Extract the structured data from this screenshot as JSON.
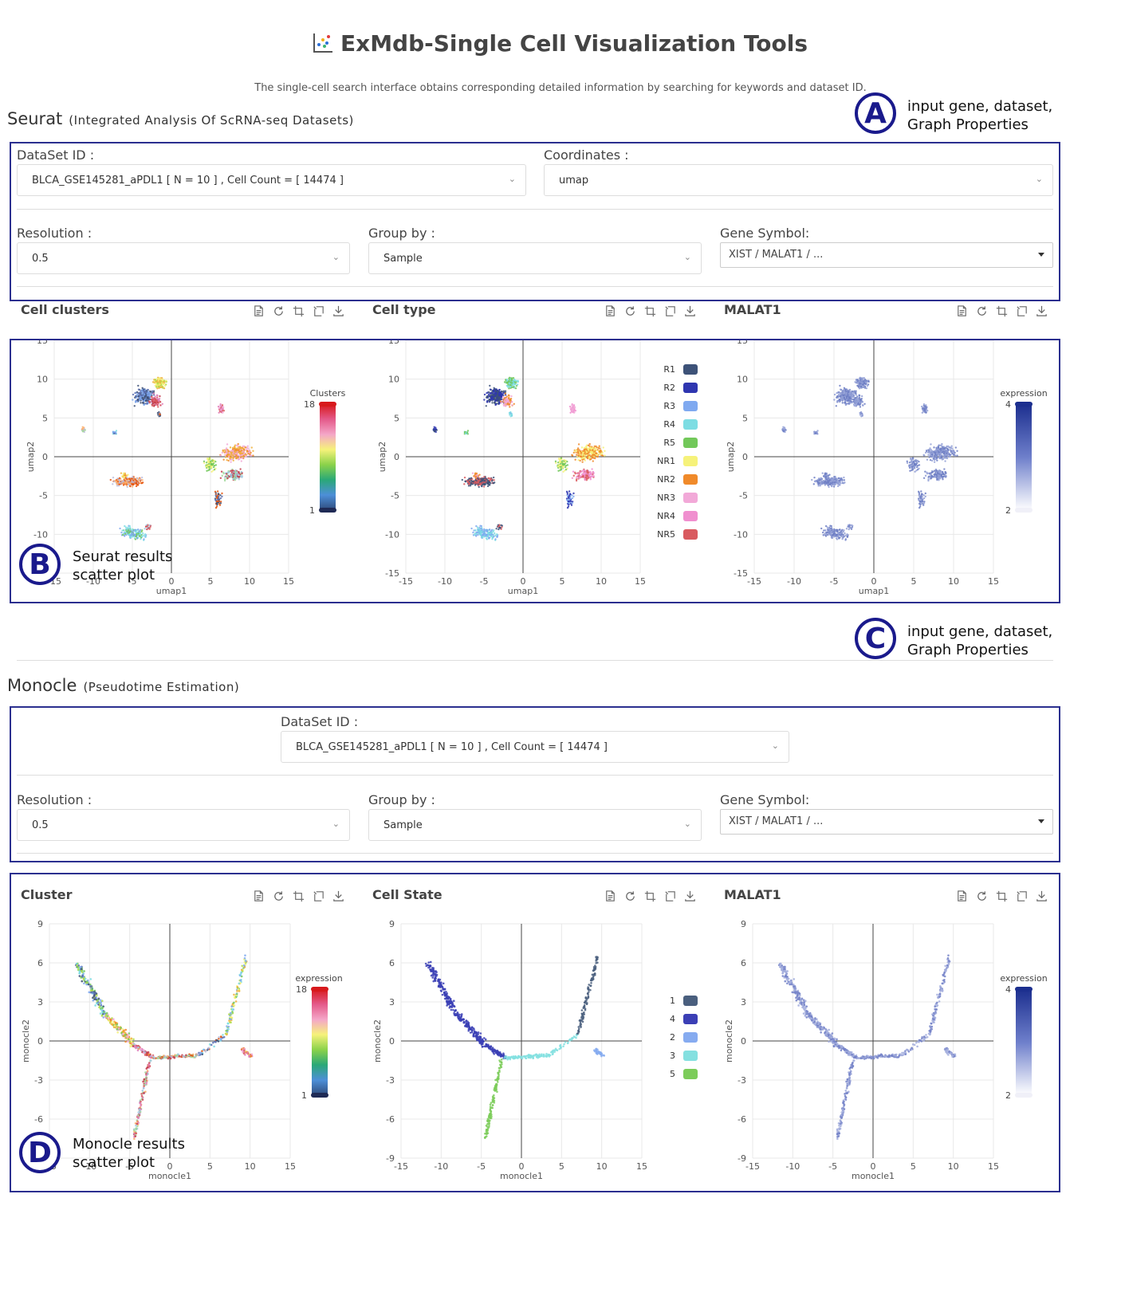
{
  "header": {
    "title": "ExMdb-Single Cell Visualization Tools",
    "subtitle": "The single-cell search interface obtains corresponding detailed information by searching for keywords and dataset ID."
  },
  "annotations": {
    "a": {
      "letter": "A",
      "line1": "input gene, dataset,",
      "line2": "Graph Properties"
    },
    "b": {
      "letter": "B",
      "line1": "Seurat results",
      "line2": "scatter plot"
    },
    "c": {
      "letter": "C",
      "line1": "input gene, dataset,",
      "line2": "Graph Properties"
    },
    "d": {
      "letter": "D",
      "line1": "Monocle results",
      "line2": "scatter plot"
    }
  },
  "seurat": {
    "name": "Seurat",
    "desc": "(Integrated Analysis Of ScRNA-seq Datasets)",
    "dataset_label": "DataSet ID :",
    "dataset_value": "BLCA_GSE145281_aPDL1 [ N = 10 ] , Cell Count = [ 14474 ]",
    "coord_label": "Coordinates :",
    "coord_value": "umap",
    "resolution_label": "Resolution :",
    "resolution_value": "0.5",
    "groupby_label": "Group by :",
    "groupby_value": "Sample",
    "gene_label": "Gene Symbol:",
    "gene_value": "XIST / MALAT1 / ...",
    "plot_titles": [
      "Cell clusters",
      "Cell type",
      "MALAT1"
    ]
  },
  "monocle": {
    "name": "Monocle",
    "desc": "(Pseudotime Estimation)",
    "dataset_label": "DataSet ID :",
    "dataset_value": "BLCA_GSE145281_aPDL1 [ N = 10 ] , Cell Count = [ 14474 ]",
    "resolution_label": "Resolution :",
    "resolution_value": "0.5",
    "groupby_label": "Group by :",
    "groupby_value": "Sample",
    "gene_label": "Gene Symbol:",
    "gene_value": "XIST / MALAT1 / ...",
    "plot_titles": [
      "Cluster",
      "Cell State",
      "MALAT1"
    ]
  },
  "icons": [
    "data-view-icon",
    "restore-icon",
    "zoom-icon",
    "zoom-reset-icon",
    "download-icon"
  ],
  "chart_data": [
    {
      "type": "scatter",
      "title": "Cell clusters",
      "xlabel": "umap1",
      "ylabel": "umap2",
      "xlim": [
        -15,
        15
      ],
      "ylim": [
        -15,
        15
      ],
      "xticks": [
        "-15",
        "-10",
        "-5",
        "0",
        "5",
        "10",
        "15"
      ],
      "yticks": [
        "15",
        "10",
        "5",
        "0",
        "-5",
        "-10",
        "-15"
      ],
      "colorbar": {
        "title": "Clusters",
        "max": "18",
        "min": "1"
      }
    },
    {
      "type": "scatter",
      "title": "Cell type",
      "xlabel": "umap1",
      "ylabel": "umap2",
      "xlim": [
        -15,
        15
      ],
      "ylim": [
        -15,
        15
      ],
      "xticks": [
        "-15",
        "-10",
        "-5",
        "0",
        "5",
        "10",
        "15"
      ],
      "yticks": [
        "15",
        "10",
        "5",
        "0",
        "-5",
        "-10",
        "-15"
      ],
      "legend": [
        {
          "name": "R1",
          "color": "#3d5278"
        },
        {
          "name": "R2",
          "color": "#2f36b0"
        },
        {
          "name": "R3",
          "color": "#7fa9f0"
        },
        {
          "name": "R4",
          "color": "#7ddde3"
        },
        {
          "name": "R5",
          "color": "#72c85a"
        },
        {
          "name": "NR1",
          "color": "#f6f27a"
        },
        {
          "name": "NR2",
          "color": "#f08a2a"
        },
        {
          "name": "NR3",
          "color": "#f2a9d8"
        },
        {
          "name": "NR4",
          "color": "#f08fcf"
        },
        {
          "name": "NR5",
          "color": "#d95a5f"
        }
      ]
    },
    {
      "type": "scatter",
      "title": "MALAT1",
      "xlabel": "umap1",
      "ylabel": "umap2",
      "xlim": [
        -15,
        15
      ],
      "ylim": [
        -15,
        15
      ],
      "xticks": [
        "-15",
        "-10",
        "-5",
        "0",
        "5",
        "10",
        "15"
      ],
      "yticks": [
        "15",
        "10",
        "5",
        "0",
        "-5",
        "-10",
        "-15"
      ],
      "colorbar": {
        "title": "expression",
        "max": "4",
        "min": "2"
      }
    },
    {
      "type": "scatter",
      "title": "Cluster",
      "xlabel": "monocle1",
      "ylabel": "monocle2",
      "xlim": [
        -15,
        15
      ],
      "ylim": [
        -9,
        9
      ],
      "xticks": [
        "-15",
        "-10",
        "-5",
        "0",
        "5",
        "10",
        "15"
      ],
      "yticks": [
        "9",
        "6",
        "3",
        "0",
        "-3",
        "-6",
        "-9"
      ],
      "colorbar": {
        "title": "expression",
        "max": "18",
        "min": "1"
      }
    },
    {
      "type": "scatter",
      "title": "Cell State",
      "xlabel": "monocle1",
      "ylabel": "monocle2",
      "xlim": [
        -15,
        15
      ],
      "ylim": [
        -9,
        9
      ],
      "xticks": [
        "-15",
        "-10",
        "-5",
        "0",
        "5",
        "10",
        "15"
      ],
      "yticks": [
        "9",
        "6",
        "3",
        "0",
        "-3",
        "-6",
        "-9"
      ],
      "legend": [
        {
          "name": "1",
          "color": "#4a5f7e"
        },
        {
          "name": "4",
          "color": "#3b3fb5"
        },
        {
          "name": "2",
          "color": "#86abf0"
        },
        {
          "name": "3",
          "color": "#84e0e0"
        },
        {
          "name": "5",
          "color": "#7ccc5a"
        }
      ]
    },
    {
      "type": "scatter",
      "title": "MALAT1",
      "xlabel": "monocle1",
      "ylabel": "monocle2",
      "xlim": [
        -15,
        15
      ],
      "ylim": [
        -9,
        9
      ],
      "xticks": [
        "-15",
        "-10",
        "-5",
        "0",
        "5",
        "10",
        "15"
      ],
      "yticks": [
        "9",
        "6",
        "3",
        "0",
        "-3",
        "-6",
        "-9"
      ],
      "colorbar": {
        "title": "expression",
        "max": "4",
        "min": "2"
      }
    }
  ]
}
